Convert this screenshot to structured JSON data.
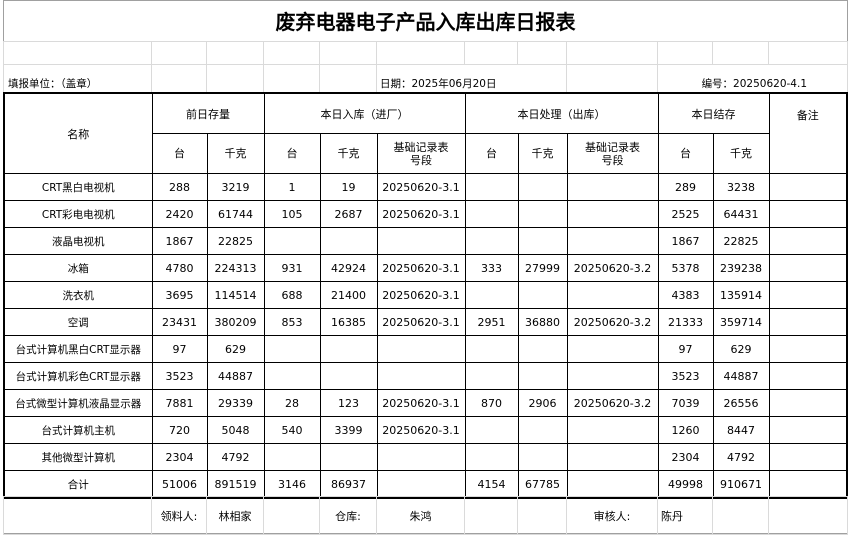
{
  "title": "废弃电器电子产品入库出库日报表",
  "info": {
    "unit_label": "填报单位：（盖章）",
    "date": "日期：2025年06月20日",
    "serial": "编号：20250620-4.1"
  },
  "headers": {
    "name": "名称",
    "prev_stock": "前日存量",
    "inbound": "本日入库（进厂）",
    "processed": "本日处理（出库）",
    "closing": "本日结存",
    "remark": "备注",
    "unit_count": "台",
    "unit_kg": "千克",
    "record_no": "基础记录表号段"
  },
  "rows": [
    {
      "name": "CRT黑白电视机",
      "prev_t": "288",
      "prev_kg": "3219",
      "in_t": "1",
      "in_kg": "19",
      "in_no": "20250620-3.1",
      "out_t": "",
      "out_kg": "",
      "out_no": "",
      "end_t": "289",
      "end_kg": "3238",
      "remark": ""
    },
    {
      "name": "CRT彩电电视机",
      "prev_t": "2420",
      "prev_kg": "61744",
      "in_t": "105",
      "in_kg": "2687",
      "in_no": "20250620-3.1",
      "out_t": "",
      "out_kg": "",
      "out_no": "",
      "end_t": "2525",
      "end_kg": "64431",
      "remark": ""
    },
    {
      "name": "液晶电视机",
      "prev_t": "1867",
      "prev_kg": "22825",
      "in_t": "",
      "in_kg": "",
      "in_no": "",
      "out_t": "",
      "out_kg": "",
      "out_no": "",
      "end_t": "1867",
      "end_kg": "22825",
      "remark": ""
    },
    {
      "name": "冰箱",
      "prev_t": "4780",
      "prev_kg": "224313",
      "in_t": "931",
      "in_kg": "42924",
      "in_no": "20250620-3.1",
      "out_t": "333",
      "out_kg": "27999",
      "out_no": "20250620-3.2",
      "end_t": "5378",
      "end_kg": "239238",
      "remark": ""
    },
    {
      "name": "洗衣机",
      "prev_t": "3695",
      "prev_kg": "114514",
      "in_t": "688",
      "in_kg": "21400",
      "in_no": "20250620-3.1",
      "out_t": "",
      "out_kg": "",
      "out_no": "",
      "end_t": "4383",
      "end_kg": "135914",
      "remark": ""
    },
    {
      "name": "空调",
      "prev_t": "23431",
      "prev_kg": "380209",
      "in_t": "853",
      "in_kg": "16385",
      "in_no": "20250620-3.1",
      "out_t": "2951",
      "out_kg": "36880",
      "out_no": "20250620-3.2",
      "end_t": "21333",
      "end_kg": "359714",
      "remark": ""
    },
    {
      "name": "台式计算机黑白CRT显示器",
      "prev_t": "97",
      "prev_kg": "629",
      "in_t": "",
      "in_kg": "",
      "in_no": "",
      "out_t": "",
      "out_kg": "",
      "out_no": "",
      "end_t": "97",
      "end_kg": "629",
      "remark": ""
    },
    {
      "name": "台式计算机彩色CRT显示器",
      "prev_t": "3523",
      "prev_kg": "44887",
      "in_t": "",
      "in_kg": "",
      "in_no": "",
      "out_t": "",
      "out_kg": "",
      "out_no": "",
      "end_t": "3523",
      "end_kg": "44887",
      "remark": ""
    },
    {
      "name": "台式微型计算机液晶显示器",
      "prev_t": "7881",
      "prev_kg": "29339",
      "in_t": "28",
      "in_kg": "123",
      "in_no": "20250620-3.1",
      "out_t": "870",
      "out_kg": "2906",
      "out_no": "20250620-3.2",
      "end_t": "7039",
      "end_kg": "26556",
      "remark": ""
    },
    {
      "name": "台式计算机主机",
      "prev_t": "720",
      "prev_kg": "5048",
      "in_t": "540",
      "in_kg": "3399",
      "in_no": "20250620-3.1",
      "out_t": "",
      "out_kg": "",
      "out_no": "",
      "end_t": "1260",
      "end_kg": "8447",
      "remark": ""
    },
    {
      "name": "其他微型计算机",
      "prev_t": "2304",
      "prev_kg": "4792",
      "in_t": "",
      "in_kg": "",
      "in_no": "",
      "out_t": "",
      "out_kg": "",
      "out_no": "",
      "end_t": "2304",
      "end_kg": "4792",
      "remark": ""
    },
    {
      "name": "合计",
      "prev_t": "51006",
      "prev_kg": "891519",
      "in_t": "3146",
      "in_kg": "86937",
      "in_no": "",
      "out_t": "4154",
      "out_kg": "67785",
      "out_no": "",
      "end_t": "49998",
      "end_kg": "910671",
      "remark": ""
    }
  ],
  "footer": {
    "receiver_label": "领料人:",
    "receiver": "林相家",
    "warehouse_label": "仓库:",
    "warehouse": "朱鸿",
    "reviewer_label": "审核人:",
    "reviewer": "陈丹"
  }
}
